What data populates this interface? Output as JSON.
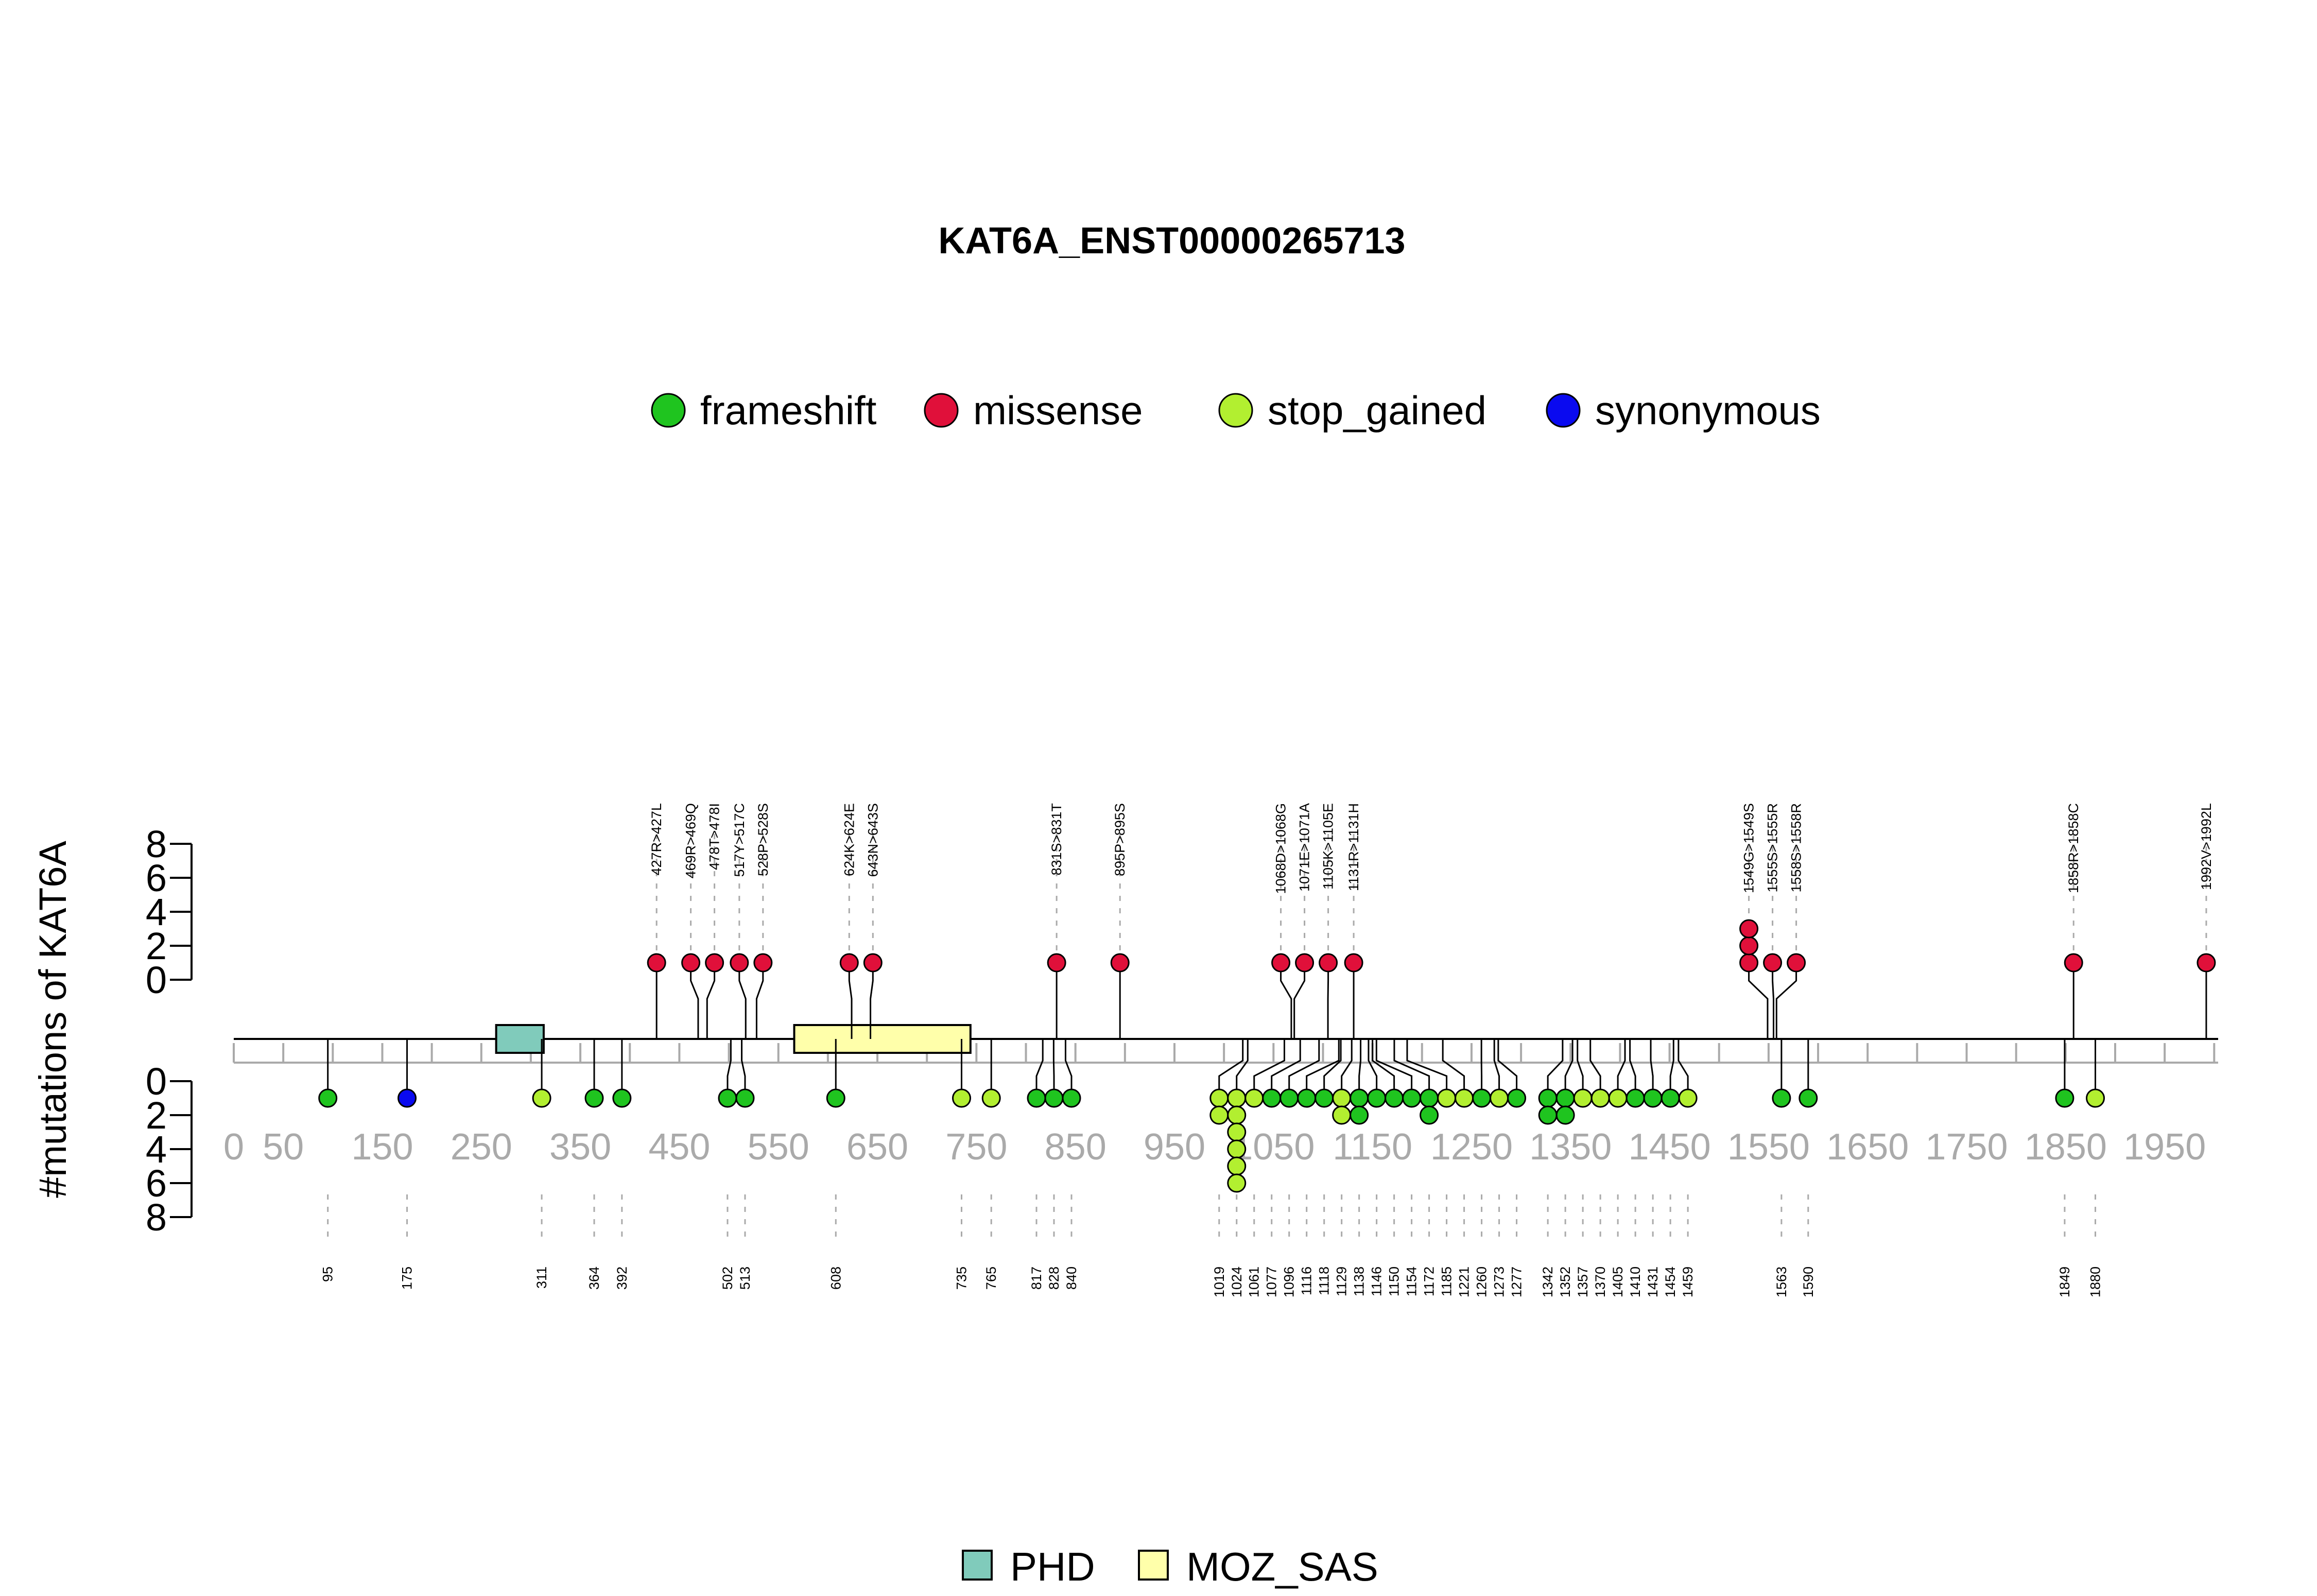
{
  "chart_data": {
    "type": "lollipop",
    "title": "KAT6A_ENST00000265713",
    "ylabel": "#mutations of KAT6A",
    "ylim": [
      0,
      8
    ],
    "yticks": [
      "0",
      "2",
      "4",
      "6",
      "8"
    ],
    "xlim": [
      0,
      2004
    ],
    "xticks": [
      0,
      50,
      150,
      250,
      350,
      450,
      550,
      650,
      750,
      850,
      950,
      1050,
      1150,
      1250,
      1350,
      1450,
      1550,
      1650,
      1750,
      1850,
      1950
    ],
    "xtick_labels": [
      "0",
      "50",
      "150",
      "250",
      "350",
      "450",
      "550",
      "650",
      "750",
      "850",
      "950",
      "1050",
      "1150",
      "1250",
      "1350",
      "1450",
      "1550",
      "1650",
      "1750",
      "1850",
      "1950"
    ],
    "legend": [
      {
        "name": "frameshift",
        "color": "#1fc41f"
      },
      {
        "name": "missense",
        "color": "#e0103a"
      },
      {
        "name": "stop_gained",
        "color": "#b2ef30"
      },
      {
        "name": "synonymous",
        "color": "#0a0af0"
      }
    ],
    "domain_legend": [
      {
        "name": "PHD",
        "color": "#80cbbb"
      },
      {
        "name": "MOZ_SAS",
        "color": "#ffffaa"
      }
    ],
    "domains": [
      {
        "name": "PHD",
        "start": 265,
        "end": 313
      },
      {
        "name": "MOZ_SAS",
        "start": 566,
        "end": 744
      }
    ],
    "missense": [
      {
        "pos": 427,
        "count": 1,
        "label": "427R>427L"
      },
      {
        "pos": 469,
        "count": 1,
        "label": "469R>469Q"
      },
      {
        "pos": 478,
        "count": 1,
        "label": "478T>478I"
      },
      {
        "pos": 517,
        "count": 1,
        "label": "517Y>517C"
      },
      {
        "pos": 528,
        "count": 1,
        "label": "528P>528S"
      },
      {
        "pos": 624,
        "count": 1,
        "label": "624K>624E"
      },
      {
        "pos": 643,
        "count": 1,
        "label": "643N>643S"
      },
      {
        "pos": 831,
        "count": 1,
        "label": "831S>831T"
      },
      {
        "pos": 895,
        "count": 1,
        "label": "895P>895S"
      },
      {
        "pos": 1068,
        "count": 1,
        "label": "1068D>1068G"
      },
      {
        "pos": 1071,
        "count": 1,
        "label": "1071E>1071A"
      },
      {
        "pos": 1105,
        "count": 1,
        "label": "1105K>1105E"
      },
      {
        "pos": 1131,
        "count": 1,
        "label": "1131R>1131H"
      },
      {
        "pos": 1549,
        "count": 3,
        "label": "1549G>1549S"
      },
      {
        "pos": 1555,
        "count": 1,
        "label": "1555S>1555R"
      },
      {
        "pos": 1558,
        "count": 1,
        "label": "1558S>1558R"
      },
      {
        "pos": 1858,
        "count": 1,
        "label": "1858R>1858C"
      },
      {
        "pos": 1992,
        "count": 1,
        "label": "1992V>1992L"
      }
    ],
    "lower": [
      {
        "pos": 95,
        "label": "95",
        "dots": [
          "frameshift"
        ]
      },
      {
        "pos": 175,
        "label": "175",
        "dots": [
          "synonymous"
        ]
      },
      {
        "pos": 311,
        "label": "311",
        "dots": [
          "stop_gained"
        ]
      },
      {
        "pos": 364,
        "label": "364",
        "dots": [
          "frameshift"
        ]
      },
      {
        "pos": 392,
        "label": "392",
        "dots": [
          "frameshift"
        ]
      },
      {
        "pos": 502,
        "label": "502",
        "dots": [
          "frameshift"
        ]
      },
      {
        "pos": 513,
        "label": "513",
        "dots": [
          "frameshift"
        ]
      },
      {
        "pos": 608,
        "label": "608",
        "dots": [
          "frameshift"
        ]
      },
      {
        "pos": 735,
        "label": "735",
        "dots": [
          "stop_gained"
        ]
      },
      {
        "pos": 765,
        "label": "765",
        "dots": [
          "stop_gained"
        ]
      },
      {
        "pos": 817,
        "label": "817",
        "dots": [
          "frameshift"
        ]
      },
      {
        "pos": 828,
        "label": "828",
        "dots": [
          "frameshift"
        ]
      },
      {
        "pos": 840,
        "label": "840",
        "dots": [
          "frameshift"
        ]
      },
      {
        "pos": 1019,
        "label": "1019",
        "dots": [
          "stop_gained",
          "stop_gained"
        ]
      },
      {
        "pos": 1024,
        "label": "1024",
        "dots": [
          "stop_gained",
          "stop_gained",
          "stop_gained",
          "stop_gained",
          "stop_gained",
          "stop_gained"
        ]
      },
      {
        "pos": 1061,
        "label": "1061",
        "dots": [
          "stop_gained"
        ]
      },
      {
        "pos": 1077,
        "label": "1077",
        "dots": [
          "frameshift"
        ]
      },
      {
        "pos": 1096,
        "label": "1096",
        "dots": [
          "frameshift"
        ]
      },
      {
        "pos": 1116,
        "label": "1116",
        "dots": [
          "frameshift"
        ]
      },
      {
        "pos": 1118,
        "label": "1118",
        "dots": [
          "frameshift"
        ]
      },
      {
        "pos": 1129,
        "label": "1129",
        "dots": [
          "stop_gained",
          "stop_gained"
        ]
      },
      {
        "pos": 1138,
        "label": "1138",
        "dots": [
          "frameshift",
          "frameshift"
        ]
      },
      {
        "pos": 1146,
        "label": "1146",
        "dots": [
          "frameshift"
        ]
      },
      {
        "pos": 1150,
        "label": "1150",
        "dots": [
          "frameshift"
        ]
      },
      {
        "pos": 1154,
        "label": "1154",
        "dots": [
          "frameshift"
        ]
      },
      {
        "pos": 1172,
        "label": "1172",
        "dots": [
          "frameshift",
          "frameshift"
        ]
      },
      {
        "pos": 1185,
        "label": "1185",
        "dots": [
          "stop_gained"
        ]
      },
      {
        "pos": 1221,
        "label": "1221",
        "dots": [
          "stop_gained"
        ]
      },
      {
        "pos": 1260,
        "label": "1260",
        "dots": [
          "frameshift"
        ]
      },
      {
        "pos": 1273,
        "label": "1273",
        "dots": [
          "stop_gained"
        ]
      },
      {
        "pos": 1277,
        "label": "1277",
        "dots": [
          "frameshift"
        ]
      },
      {
        "pos": 1342,
        "label": "1342",
        "dots": [
          "frameshift",
          "frameshift"
        ]
      },
      {
        "pos": 1352,
        "label": "1352",
        "dots": [
          "frameshift",
          "frameshift"
        ]
      },
      {
        "pos": 1357,
        "label": "1357",
        "dots": [
          "stop_gained"
        ]
      },
      {
        "pos": 1370,
        "label": "1370",
        "dots": [
          "stop_gained"
        ]
      },
      {
        "pos": 1405,
        "label": "1405",
        "dots": [
          "stop_gained"
        ]
      },
      {
        "pos": 1410,
        "label": "1410",
        "dots": [
          "frameshift"
        ]
      },
      {
        "pos": 1431,
        "label": "1431",
        "dots": [
          "frameshift"
        ]
      },
      {
        "pos": 1454,
        "label": "1454",
        "dots": [
          "frameshift"
        ]
      },
      {
        "pos": 1459,
        "label": "1459",
        "dots": [
          "stop_gained"
        ]
      },
      {
        "pos": 1563,
        "label": "1563",
        "dots": [
          "frameshift"
        ]
      },
      {
        "pos": 1590,
        "label": "1590",
        "dots": [
          "frameshift"
        ]
      },
      {
        "pos": 1849,
        "label": "1849",
        "dots": [
          "frameshift"
        ]
      },
      {
        "pos": 1880,
        "label": "1880",
        "dots": [
          "stop_gained"
        ]
      }
    ]
  }
}
